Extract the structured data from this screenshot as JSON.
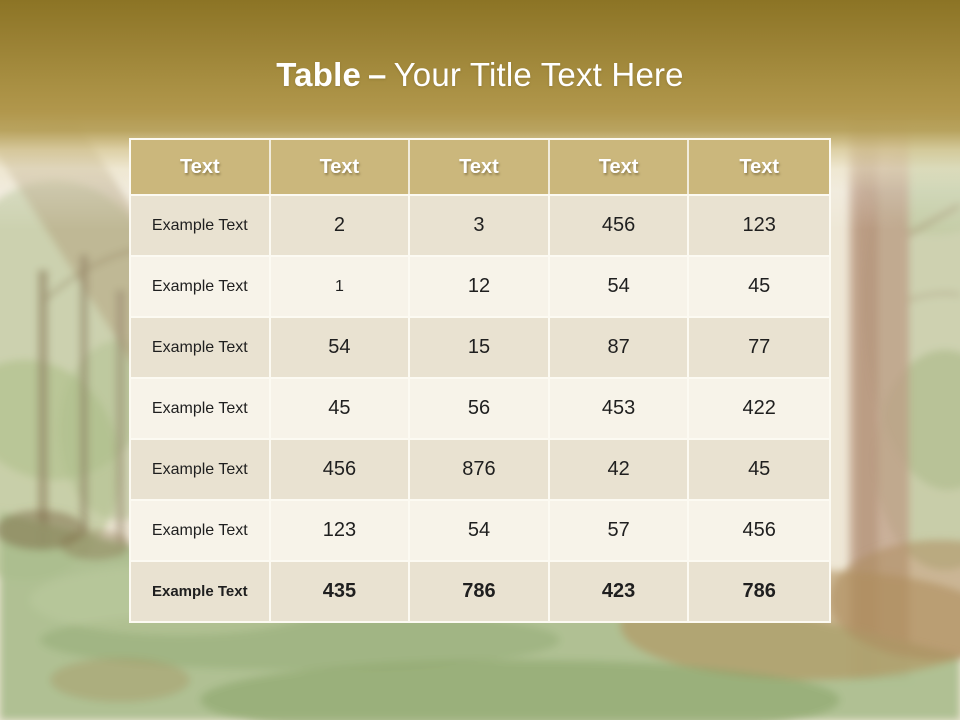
{
  "title": {
    "keyword": "Table",
    "dash": "–",
    "text": "Your Title Text Here"
  },
  "table": {
    "headers": [
      "Text",
      "Text",
      "Text",
      "Text",
      "Text"
    ],
    "rows": [
      {
        "cells": [
          "Example Text",
          "2",
          "3",
          "456",
          "123"
        ],
        "bold": false
      },
      {
        "cells": [
          "Example Text",
          "1",
          "12",
          "54",
          "45"
        ],
        "bold": false
      },
      {
        "cells": [
          "Example Text",
          "54",
          "15",
          "87",
          "77"
        ],
        "bold": false
      },
      {
        "cells": [
          "Example Text",
          "45",
          "56",
          "453",
          "422"
        ],
        "bold": false
      },
      {
        "cells": [
          "Example Text",
          "456",
          "876",
          "42",
          "45"
        ],
        "bold": false
      },
      {
        "cells": [
          "Example Text",
          "123",
          "54",
          "57",
          "456"
        ],
        "bold": false
      },
      {
        "cells": [
          "Example Text",
          "435",
          "786",
          "423",
          "786"
        ],
        "bold": true
      }
    ],
    "small_cells": [
      {
        "row": 1,
        "col": 1
      }
    ]
  },
  "colors": {
    "gold_top": "#8c7425",
    "gold_mid": "#b1974c",
    "header_bg": "#cbb77c",
    "row_dark": "#e9e2d1",
    "row_light": "#f7f3e9",
    "grid_line": "#fcfaf2",
    "title_text": "#ffffff",
    "body_text": "#1f1f1f"
  }
}
